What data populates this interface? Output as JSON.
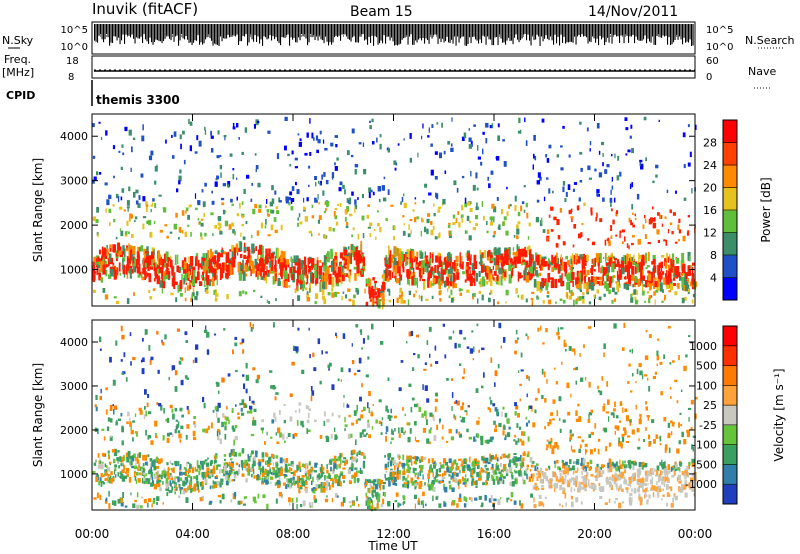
{
  "header": {
    "station": "Inuvik (fitACF)",
    "beam": "Beam 15",
    "date": "14/Nov/2011"
  },
  "meta_labels": {
    "nsky": "N.Sky",
    "nsearch": "N.Search",
    "freq_line1": "Freq.",
    "freq_line2": "[MHz]",
    "nave": "Nave",
    "cpid": "CPID",
    "cpid_value": "themis 3300",
    "nsky_ticks": [
      "10^5",
      "10^0"
    ],
    "nsearch_ticks": [
      "10^5",
      "10^0"
    ],
    "freq_ticks": [
      "18",
      "8"
    ],
    "nave_ticks": [
      "60",
      "0"
    ]
  },
  "chart_data": [
    {
      "type": "heatmap",
      "name": "power",
      "ylabel": "Slant Range [km]",
      "yticks": [
        1000,
        2000,
        3000,
        4000
      ],
      "ylim": [
        180,
        4500
      ],
      "xlim": [
        0,
        24
      ],
      "colorbar_label": "Power [dB]",
      "colorbar_ticks": [
        4,
        8,
        12,
        16,
        20,
        24,
        28
      ],
      "colorbar_colors": [
        "#0000ff",
        "#2050c8",
        "#3a8f6a",
        "#5fbf3a",
        "#e6c21e",
        "#ff8a00",
        "#ff4000",
        "#ff0000"
      ]
    },
    {
      "type": "heatmap",
      "name": "velocity",
      "ylabel": "Slant Range [km]",
      "yticks": [
        1000,
        2000,
        3000,
        4000
      ],
      "ylim": [
        180,
        4500
      ],
      "xlim": [
        0,
        24
      ],
      "colorbar_label": "Velocity [m s⁻¹]",
      "colorbar_ticks": [
        "1000",
        "500",
        "100",
        "25",
        "-25",
        "-100",
        "-500",
        "-1000"
      ],
      "colorbar_colors": [
        "#1f3fbf",
        "#2f7faa",
        "#3aa060",
        "#66c43a",
        "#c8c8c0",
        "#ffa23a",
        "#ff7a00",
        "#ff3000",
        "#ff0000"
      ]
    }
  ],
  "time_axis": {
    "label": "Time UT",
    "ticks": [
      "00:00",
      "04:00",
      "08:00",
      "12:00",
      "16:00",
      "20:00",
      "00:00"
    ]
  }
}
